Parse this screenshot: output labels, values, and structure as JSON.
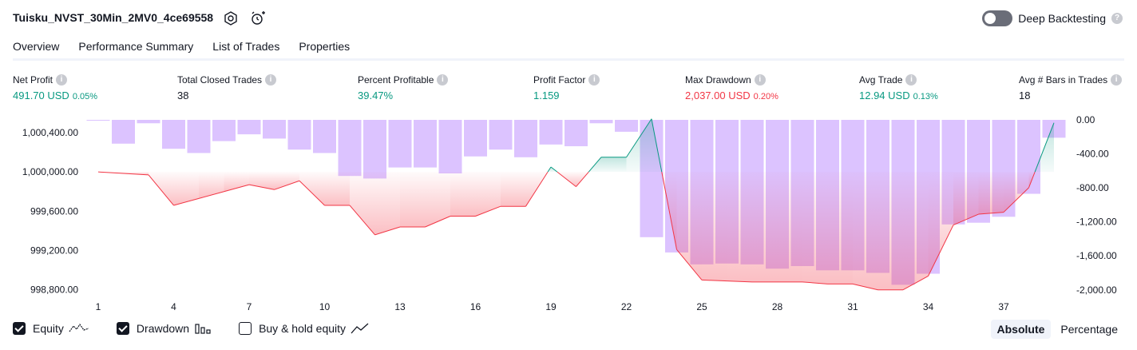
{
  "header": {
    "title": "Tuisku_NVST_30Min_2MV0_4ce69558",
    "deep_backtesting_label": "Deep Backtesting"
  },
  "tabs": [
    {
      "label": "Overview",
      "active": true
    },
    {
      "label": "Performance Summary",
      "active": false
    },
    {
      "label": "List of Trades",
      "active": false
    },
    {
      "label": "Properties",
      "active": false
    }
  ],
  "stats": {
    "net_profit": {
      "label": "Net Profit",
      "value": "491.70 USD",
      "pct": "0.05%"
    },
    "total_closed_trades": {
      "label": "Total Closed Trades",
      "value": "38"
    },
    "percent_profitable": {
      "label": "Percent Profitable",
      "value": "39.47%"
    },
    "profit_factor": {
      "label": "Profit Factor",
      "value": "1.159"
    },
    "max_drawdown": {
      "label": "Max Drawdown",
      "value": "2,037.00 USD",
      "pct": "0.20%"
    },
    "avg_trade": {
      "label": "Avg Trade",
      "value": "12.94 USD",
      "pct": "0.13%"
    },
    "avg_bars": {
      "label": "Avg # Bars in Trades",
      "value": "18"
    }
  },
  "legend": {
    "equity_label": "Equity",
    "drawdown_label": "Drawdown",
    "buyhold_label": "Buy & hold equity"
  },
  "scale": {
    "absolute_label": "Absolute",
    "percentage_label": "Percentage"
  },
  "colors": {
    "positive": "#089981",
    "negative": "#f23645",
    "drawdown_bar": "#d6b8ff"
  },
  "chart_data": {
    "type": "line",
    "x_ticks": [
      "1",
      "4",
      "7",
      "10",
      "13",
      "16",
      "19",
      "22",
      "25",
      "28",
      "31",
      "34",
      "37"
    ],
    "left_axis": {
      "ticks": [
        "1,000,400.00",
        "1,000,000.00",
        "999,600.00",
        "999,200.00",
        "998,800.00"
      ],
      "ylim": [
        998700,
        1000530
      ],
      "baseline": 1000000
    },
    "right_axis": {
      "ticks": [
        "0.00",
        "-400.00",
        "-800.00",
        "-1,200.00",
        "-1,600.00",
        "-2,000.00"
      ],
      "ylim": [
        -2115,
        0
      ]
    },
    "series": [
      {
        "name": "Equity",
        "x": [
          1,
          3,
          4,
          5,
          6,
          7,
          8,
          9,
          10,
          11,
          12,
          13,
          14,
          15,
          16,
          17,
          18,
          19,
          20,
          21,
          22,
          23,
          24,
          25,
          26,
          27,
          28,
          29,
          30,
          31,
          32,
          33,
          34,
          35,
          36,
          37,
          38,
          39
        ],
        "values": [
          1000000,
          999970,
          999660,
          999730,
          999800,
          999870,
          999820,
          999910,
          999660,
          999660,
          999360,
          999440,
          999440,
          999550,
          999550,
          999650,
          999650,
          1000050,
          999850,
          1000150,
          1000150,
          1000540,
          999210,
          998900,
          998890,
          998880,
          998880,
          998880,
          998860,
          998860,
          998800,
          998800,
          998940,
          999460,
          999570,
          999590,
          999840,
          1000500
        ]
      },
      {
        "name": "Drawdown",
        "x": [
          1,
          2,
          3,
          4,
          5,
          6,
          7,
          8,
          9,
          10,
          11,
          12,
          13,
          14,
          15,
          16,
          17,
          18,
          19,
          20,
          21,
          22,
          23,
          24,
          25,
          26,
          27,
          28,
          29,
          30,
          31,
          32,
          33,
          34,
          35,
          36,
          37,
          38,
          39
        ],
        "values": [
          -5,
          -280,
          -40,
          -340,
          -390,
          -250,
          -170,
          -220,
          -350,
          -390,
          -660,
          -690,
          -560,
          -560,
          -630,
          -430,
          -350,
          -440,
          -290,
          -310,
          -40,
          -140,
          -1380,
          -1560,
          -1700,
          -1690,
          -1700,
          -1750,
          -1720,
          -1770,
          -1770,
          -1800,
          -1940,
          -1810,
          -1230,
          -1210,
          -1140,
          -870,
          -210
        ]
      }
    ]
  }
}
